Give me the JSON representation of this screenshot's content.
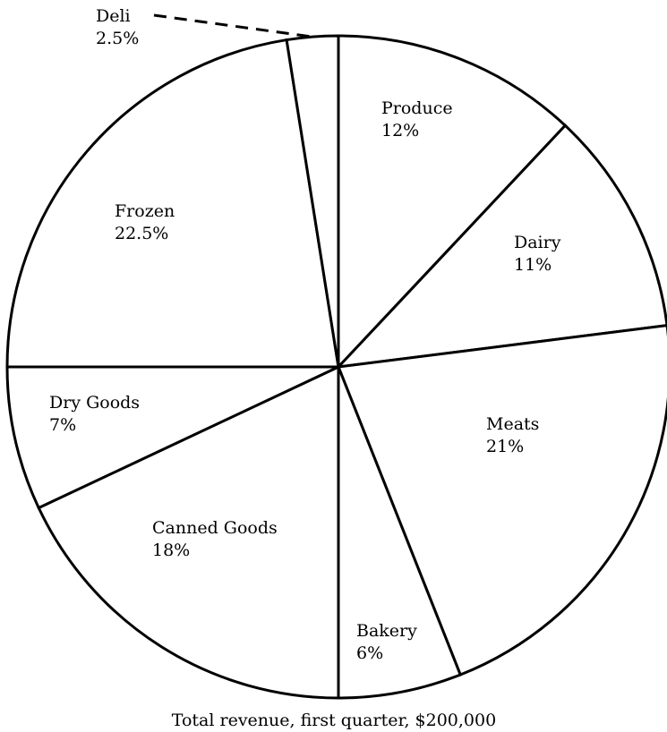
{
  "chart_data": {
    "type": "pie",
    "caption": "Total revenue, first quarter, $200,000",
    "slices": [
      {
        "name": "Produce",
        "value": 12,
        "label": "12%"
      },
      {
        "name": "Dairy",
        "value": 11,
        "label": "11%"
      },
      {
        "name": "Meats",
        "value": 21,
        "label": "21%"
      },
      {
        "name": "Bakery",
        "value": 6,
        "label": "6%"
      },
      {
        "name": "Canned Goods",
        "value": 18,
        "label": "18%"
      },
      {
        "name": "Dry Goods",
        "value": 7,
        "label": "7%"
      },
      {
        "name": "Frozen",
        "value": 22.5,
        "label": "22.5%"
      },
      {
        "name": "Deli",
        "value": 2.5,
        "label": "2.5%"
      }
    ],
    "start_direction": "12 o'clock",
    "order": "clockwise",
    "fill_color": "#ffffff",
    "stroke_color": "#000000"
  }
}
